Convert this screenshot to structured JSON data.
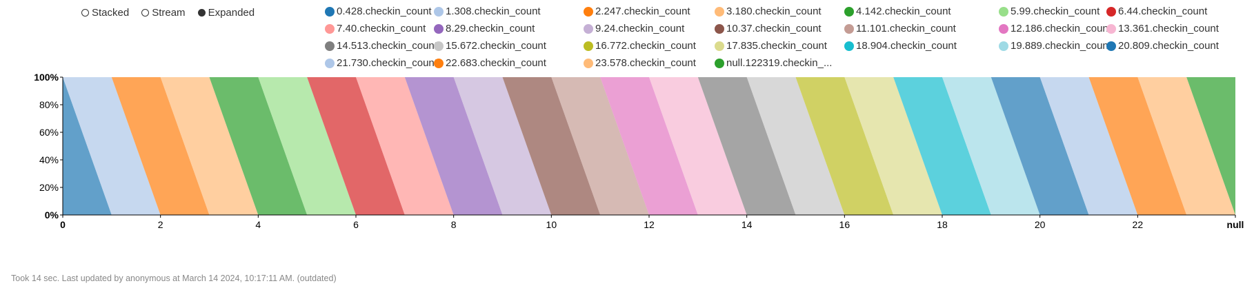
{
  "controls": [
    {
      "label": "Stacked",
      "selected": false
    },
    {
      "label": "Stream",
      "selected": false
    },
    {
      "label": "Expanded",
      "selected": true
    }
  ],
  "footer": {
    "text": "Took 14 sec. Last updated by anonymous at March 14 2024, 10:17:11 AM. (outdated)"
  },
  "chart_data": {
    "type": "area",
    "mode": "expanded",
    "x_ticks": [
      "0",
      "2",
      "4",
      "6",
      "8",
      "10",
      "12",
      "14",
      "16",
      "18",
      "20",
      "22",
      "null"
    ],
    "y_ticks": [
      "0%",
      "20%",
      "40%",
      "60%",
      "80%",
      "100%"
    ],
    "ylim": [
      0,
      100
    ],
    "legend_position": "top",
    "series": [
      {
        "name": "0.428.checkin_count",
        "color": "#1f77b4"
      },
      {
        "name": "1.308.checkin_count",
        "color": "#aec7e8"
      },
      {
        "name": "2.247.checkin_count",
        "color": "#ff7f0e"
      },
      {
        "name": "3.180.checkin_count",
        "color": "#ffbb78"
      },
      {
        "name": "4.142.checkin_count",
        "color": "#2ca02c"
      },
      {
        "name": "5.99.checkin_count",
        "color": "#98df8a"
      },
      {
        "name": "6.44.checkin_count",
        "color": "#d62728"
      },
      {
        "name": "7.40.checkin_count",
        "color": "#ff9896"
      },
      {
        "name": "8.29.checkin_count",
        "color": "#9467bd"
      },
      {
        "name": "9.24.checkin_count",
        "color": "#c5b0d5"
      },
      {
        "name": "10.37.checkin_count",
        "color": "#8c564b"
      },
      {
        "name": "11.101.checkin_count",
        "color": "#c49c94"
      },
      {
        "name": "12.186.checkin_count",
        "color": "#e377c2"
      },
      {
        "name": "13.361.checkin_count",
        "color": "#f7b6d2"
      },
      {
        "name": "14.513.checkin_count",
        "color": "#7f7f7f"
      },
      {
        "name": "15.672.checkin_count",
        "color": "#c7c7c7"
      },
      {
        "name": "16.772.checkin_count",
        "color": "#bcbd22"
      },
      {
        "name": "17.835.checkin_count",
        "color": "#dbdb8d"
      },
      {
        "name": "18.904.checkin_count",
        "color": "#17becf"
      },
      {
        "name": "19.889.checkin_count",
        "color": "#9edae5"
      },
      {
        "name": "20.809.checkin_count",
        "color": "#1f77b4"
      },
      {
        "name": "21.730.checkin_count",
        "color": "#aec7e8"
      },
      {
        "name": "22.683.checkin_count",
        "color": "#ff7f0e"
      },
      {
        "name": "23.578.checkin_count",
        "color": "#ffbb78"
      },
      {
        "name": "null.122319.checkin_...",
        "color": "#2ca02c"
      }
    ]
  }
}
